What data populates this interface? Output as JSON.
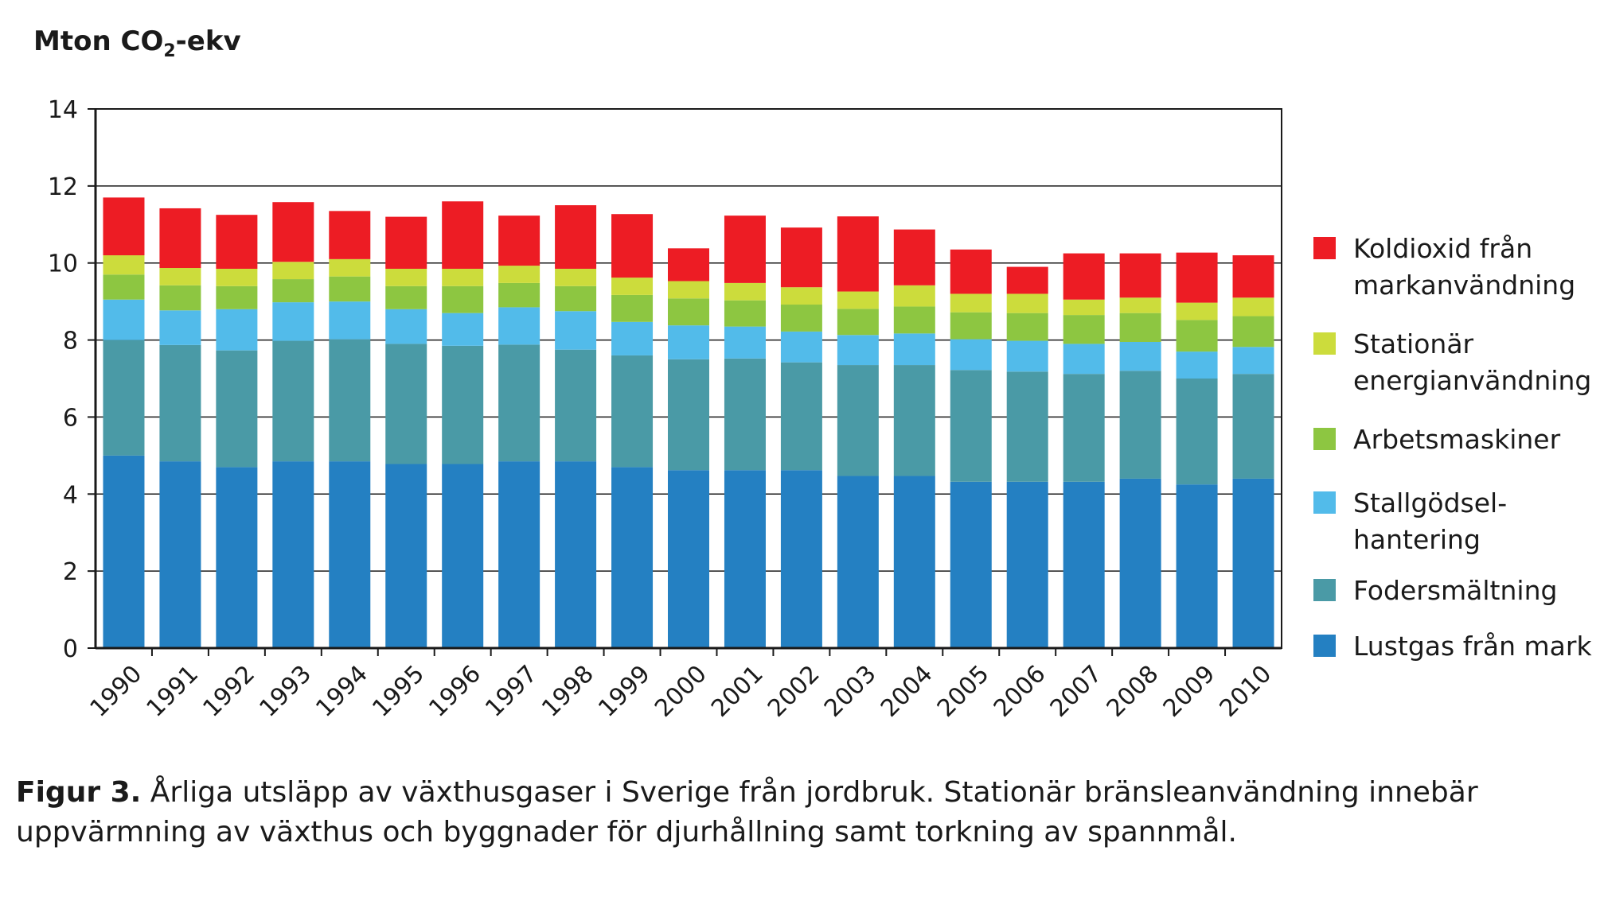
{
  "chart_data": {
    "type": "bar",
    "stacked": true,
    "ylabel": {
      "prefix": "Mton CO",
      "sub": "2",
      "suffix": "-ekv"
    },
    "ylim": [
      0,
      14
    ],
    "yticks": [
      "0",
      "2",
      "4",
      "6",
      "8",
      "10",
      "12",
      "14"
    ],
    "grid": true,
    "legend_position": "right",
    "categories": [
      "1990",
      "1991",
      "1992",
      "1993",
      "1994",
      "1995",
      "1996",
      "1997",
      "1998",
      "1999",
      "2000",
      "2001",
      "2002",
      "2003",
      "2004",
      "2005",
      "2006",
      "2007",
      "2008",
      "2009",
      "2010"
    ],
    "series": [
      {
        "name": "Lustgas från mark",
        "color": "#2480c2",
        "values": [
          5.0,
          4.85,
          4.7,
          4.85,
          4.85,
          4.78,
          4.78,
          4.85,
          4.85,
          4.7,
          4.62,
          4.62,
          4.62,
          4.47,
          4.47,
          4.32,
          4.32,
          4.32,
          4.4,
          4.25,
          4.4
        ]
      },
      {
        "name": "Fodersmältning",
        "color": "#4a9aa6",
        "values": [
          3.0,
          3.02,
          3.03,
          3.13,
          3.17,
          3.12,
          3.07,
          3.03,
          2.9,
          2.9,
          2.88,
          2.9,
          2.8,
          2.88,
          2.88,
          2.9,
          2.86,
          2.8,
          2.8,
          2.75,
          2.72
        ]
      },
      {
        "name": "Stallgödsel-\nhantering",
        "color": "#52bbea",
        "values": [
          1.05,
          0.9,
          1.07,
          1.0,
          0.98,
          0.9,
          0.85,
          0.97,
          1.0,
          0.87,
          0.88,
          0.83,
          0.8,
          0.78,
          0.82,
          0.8,
          0.8,
          0.78,
          0.75,
          0.7,
          0.7
        ]
      },
      {
        "name": "Arbetsmaskiner",
        "color": "#8dc641",
        "values": [
          0.65,
          0.65,
          0.6,
          0.6,
          0.65,
          0.6,
          0.7,
          0.63,
          0.65,
          0.7,
          0.7,
          0.68,
          0.7,
          0.68,
          0.7,
          0.7,
          0.72,
          0.75,
          0.75,
          0.82,
          0.8
        ]
      },
      {
        "name": "Stationär\nenergianvändning",
        "color": "#ccdc3c",
        "values": [
          0.5,
          0.45,
          0.45,
          0.45,
          0.45,
          0.45,
          0.45,
          0.45,
          0.45,
          0.45,
          0.45,
          0.45,
          0.45,
          0.45,
          0.55,
          0.48,
          0.5,
          0.4,
          0.4,
          0.45,
          0.48
        ]
      },
      {
        "name": "Koldioxid från\nmarkanvändning",
        "color": "#ed1c24",
        "values": [
          1.5,
          1.55,
          1.4,
          1.55,
          1.25,
          1.35,
          1.75,
          1.3,
          1.65,
          1.65,
          0.85,
          1.75,
          1.55,
          1.95,
          1.45,
          1.15,
          0.7,
          1.2,
          1.15,
          1.3,
          1.1
        ]
      }
    ]
  },
  "caption": {
    "bold": "Figur 3.",
    "text": " Årliga utsläpp av växthusgaser i Sverige från jordbruk. Stationär bränsleanvändning innebär uppvärmning av växthus och byggnader för djurhållning samt torkning av spannmål."
  }
}
